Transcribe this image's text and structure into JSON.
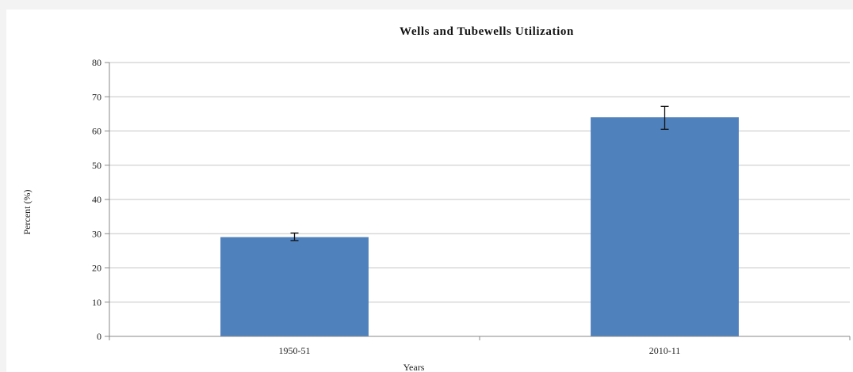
{
  "chart_data": {
    "type": "bar",
    "title": "Wells and Tubewells Utilization",
    "xlabel": "Years",
    "ylabel": "Percent (%)",
    "categories": [
      "1950-51",
      "2010-11"
    ],
    "values": [
      29,
      64
    ],
    "error_low": [
      28,
      60.5
    ],
    "error_high": [
      30.2,
      67.2
    ],
    "ylim": [
      0,
      80
    ],
    "yticks": [
      "0",
      "10",
      "20",
      "30",
      "40",
      "50",
      "60",
      "70",
      "80"
    ],
    "grid": true,
    "bar_color": "#4f81bd",
    "gridline_color": "#c6c6c6"
  }
}
